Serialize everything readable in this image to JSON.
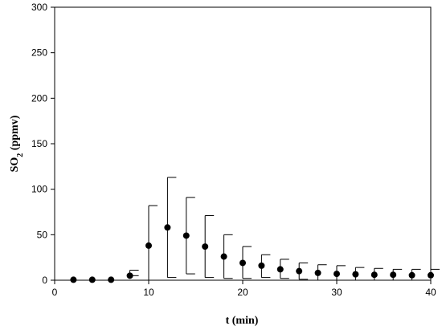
{
  "chart_data": {
    "type": "scatter",
    "title": "",
    "xlabel": "t (min)",
    "ylabel_main": "SO",
    "ylabel_sub": "2",
    "ylabel_tail": " (ppmv)",
    "xlim": [
      0,
      40
    ],
    "ylim": [
      0,
      300
    ],
    "xticks": [
      "0",
      "10",
      "20",
      "30",
      "40"
    ],
    "yticks": [
      "0",
      "50",
      "100",
      "150",
      "200",
      "250",
      "300"
    ],
    "grid": false,
    "series": [
      {
        "x": [
          2,
          4,
          6,
          8,
          10,
          12,
          14,
          16,
          18,
          20,
          22,
          24,
          26,
          28,
          30,
          32,
          34,
          36,
          38,
          40
        ],
        "y": [
          0.5,
          0.5,
          0.5,
          5,
          38,
          58,
          49,
          37,
          26,
          19,
          16,
          12,
          10,
          8,
          7,
          6.5,
          6,
          6,
          5.5,
          5.5
        ],
        "upper": [
          0.5,
          0.5,
          0.5,
          11,
          82,
          113,
          91,
          71,
          50,
          37,
          28,
          23,
          19,
          17,
          16,
          14,
          13,
          12,
          12,
          12
        ],
        "lower": [
          0.5,
          0.5,
          0.5,
          5,
          0,
          3,
          7,
          3,
          2,
          2,
          3,
          2,
          1,
          0,
          0,
          0,
          0,
          0,
          0,
          0
        ]
      }
    ]
  }
}
